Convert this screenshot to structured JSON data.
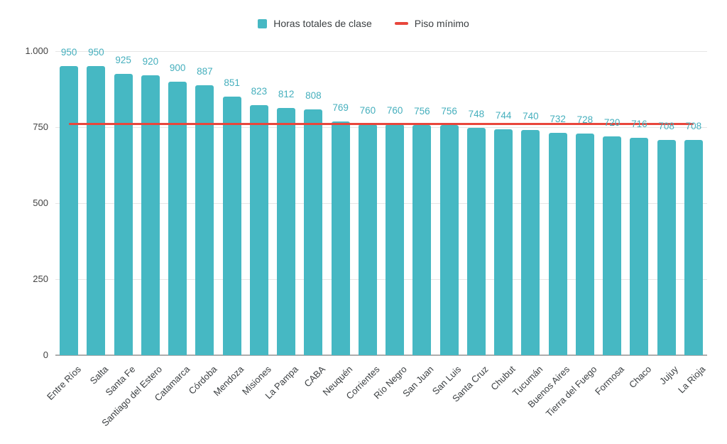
{
  "chart_data": {
    "type": "bar",
    "title": "",
    "xlabel": "",
    "ylabel": "",
    "categories": [
      "Entre Ríos",
      "Salta",
      "Santa Fe",
      "Santiago del Estero",
      "Catamarca",
      "Córdoba",
      "Mendoza",
      "Misiones",
      "La Pampa",
      "CABA",
      "Neuquén",
      "Corrientes",
      "Río Negro",
      "San Juan",
      "San Luis",
      "Santa Cruz",
      "Chubut",
      "Tucumán",
      "Buenos Aires",
      "Tierra del Fuego",
      "Formosa",
      "Chaco",
      "Jujuy",
      "La Rioja"
    ],
    "series": [
      {
        "name": "Horas totales de clase",
        "values": [
          950,
          950,
          925,
          920,
          900,
          887,
          851,
          823,
          812,
          808,
          769,
          760,
          760,
          756,
          756,
          748,
          744,
          740,
          732,
          728,
          720,
          716,
          708,
          708
        ]
      }
    ],
    "reference_line": {
      "name": "Piso mínimo",
      "value": 760
    },
    "value_labels": true,
    "grid": true,
    "legend_position": "top",
    "ylim": [
      0,
      1000
    ],
    "yticks": [
      0,
      250,
      500,
      750,
      1000
    ],
    "ytick_labels": [
      "0",
      "250",
      "500",
      "750",
      "1.000"
    ],
    "colors": {
      "bar": "#46B8C3",
      "value_label": "#45AFBD",
      "reference_line": "#E8463C",
      "axis_text": "#424242",
      "gridline": "#E6E6E6",
      "baseline": "#ADADAD",
      "background": "#FFFFFF"
    }
  }
}
